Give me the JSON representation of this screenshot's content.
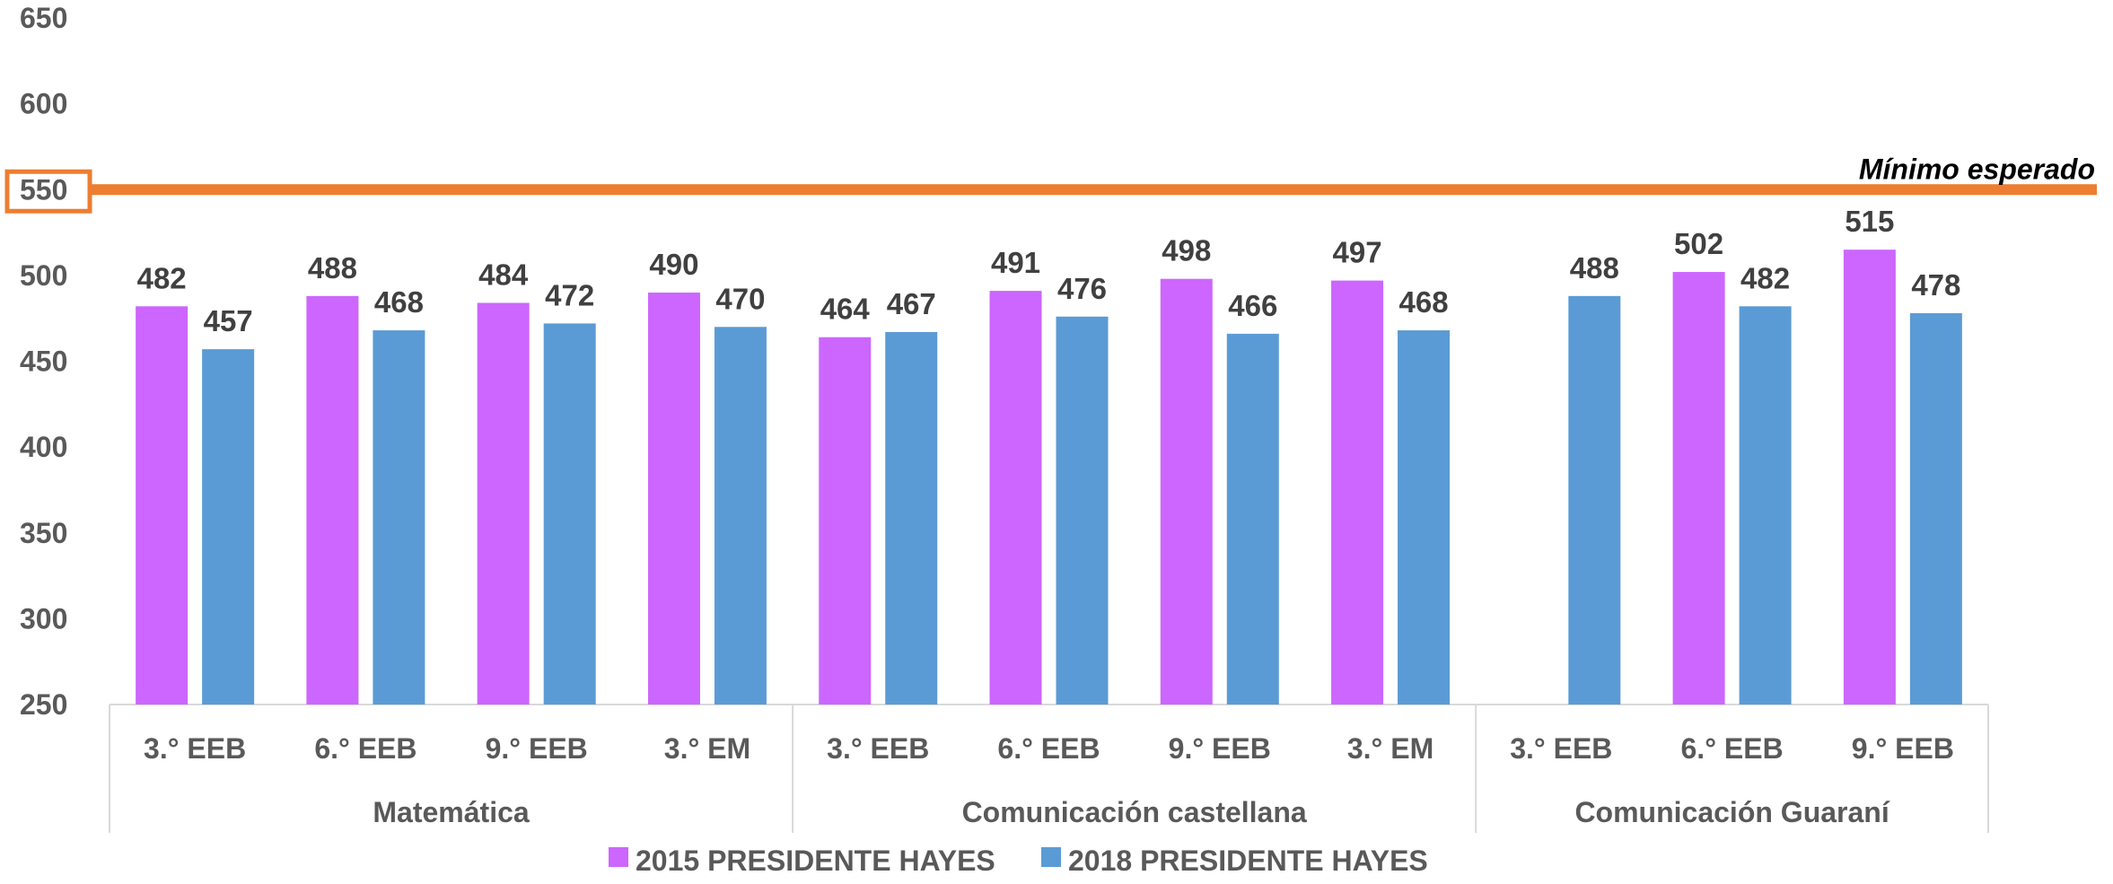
{
  "chart_data": {
    "type": "bar",
    "ylim": [
      250,
      650
    ],
    "yticks": [
      250,
      300,
      350,
      400,
      450,
      500,
      550,
      600,
      650
    ],
    "highlighted_tick": 550,
    "groups": [
      {
        "name": "Matemática",
        "categories": [
          "3.° EEB",
          "6.° EEB",
          "9.° EEB",
          "3.° EM"
        ]
      },
      {
        "name": "Comunicación castellana",
        "categories": [
          "3.° EEB",
          "6.° EEB",
          "9.° EEB",
          "3.° EM"
        ]
      },
      {
        "name": "Comunicación Guaraní",
        "categories": [
          "3.° EEB",
          "6.° EEB",
          "9.° EEB"
        ]
      }
    ],
    "series": [
      {
        "name": "2015 PRESIDENTE HAYES",
        "color": "#cc66ff",
        "values": [
          482,
          488,
          484,
          490,
          464,
          491,
          498,
          497,
          null,
          502,
          515
        ]
      },
      {
        "name": "2018 PRESIDENTE HAYES",
        "color": "#5b9bd5",
        "values": [
          457,
          468,
          472,
          470,
          467,
          476,
          466,
          468,
          488,
          482,
          478
        ]
      }
    ],
    "reference_line": {
      "value": 550,
      "label": "Mínimo esperado",
      "color": "#ed7d31"
    },
    "legend_position": "bottom",
    "grid": false
  }
}
